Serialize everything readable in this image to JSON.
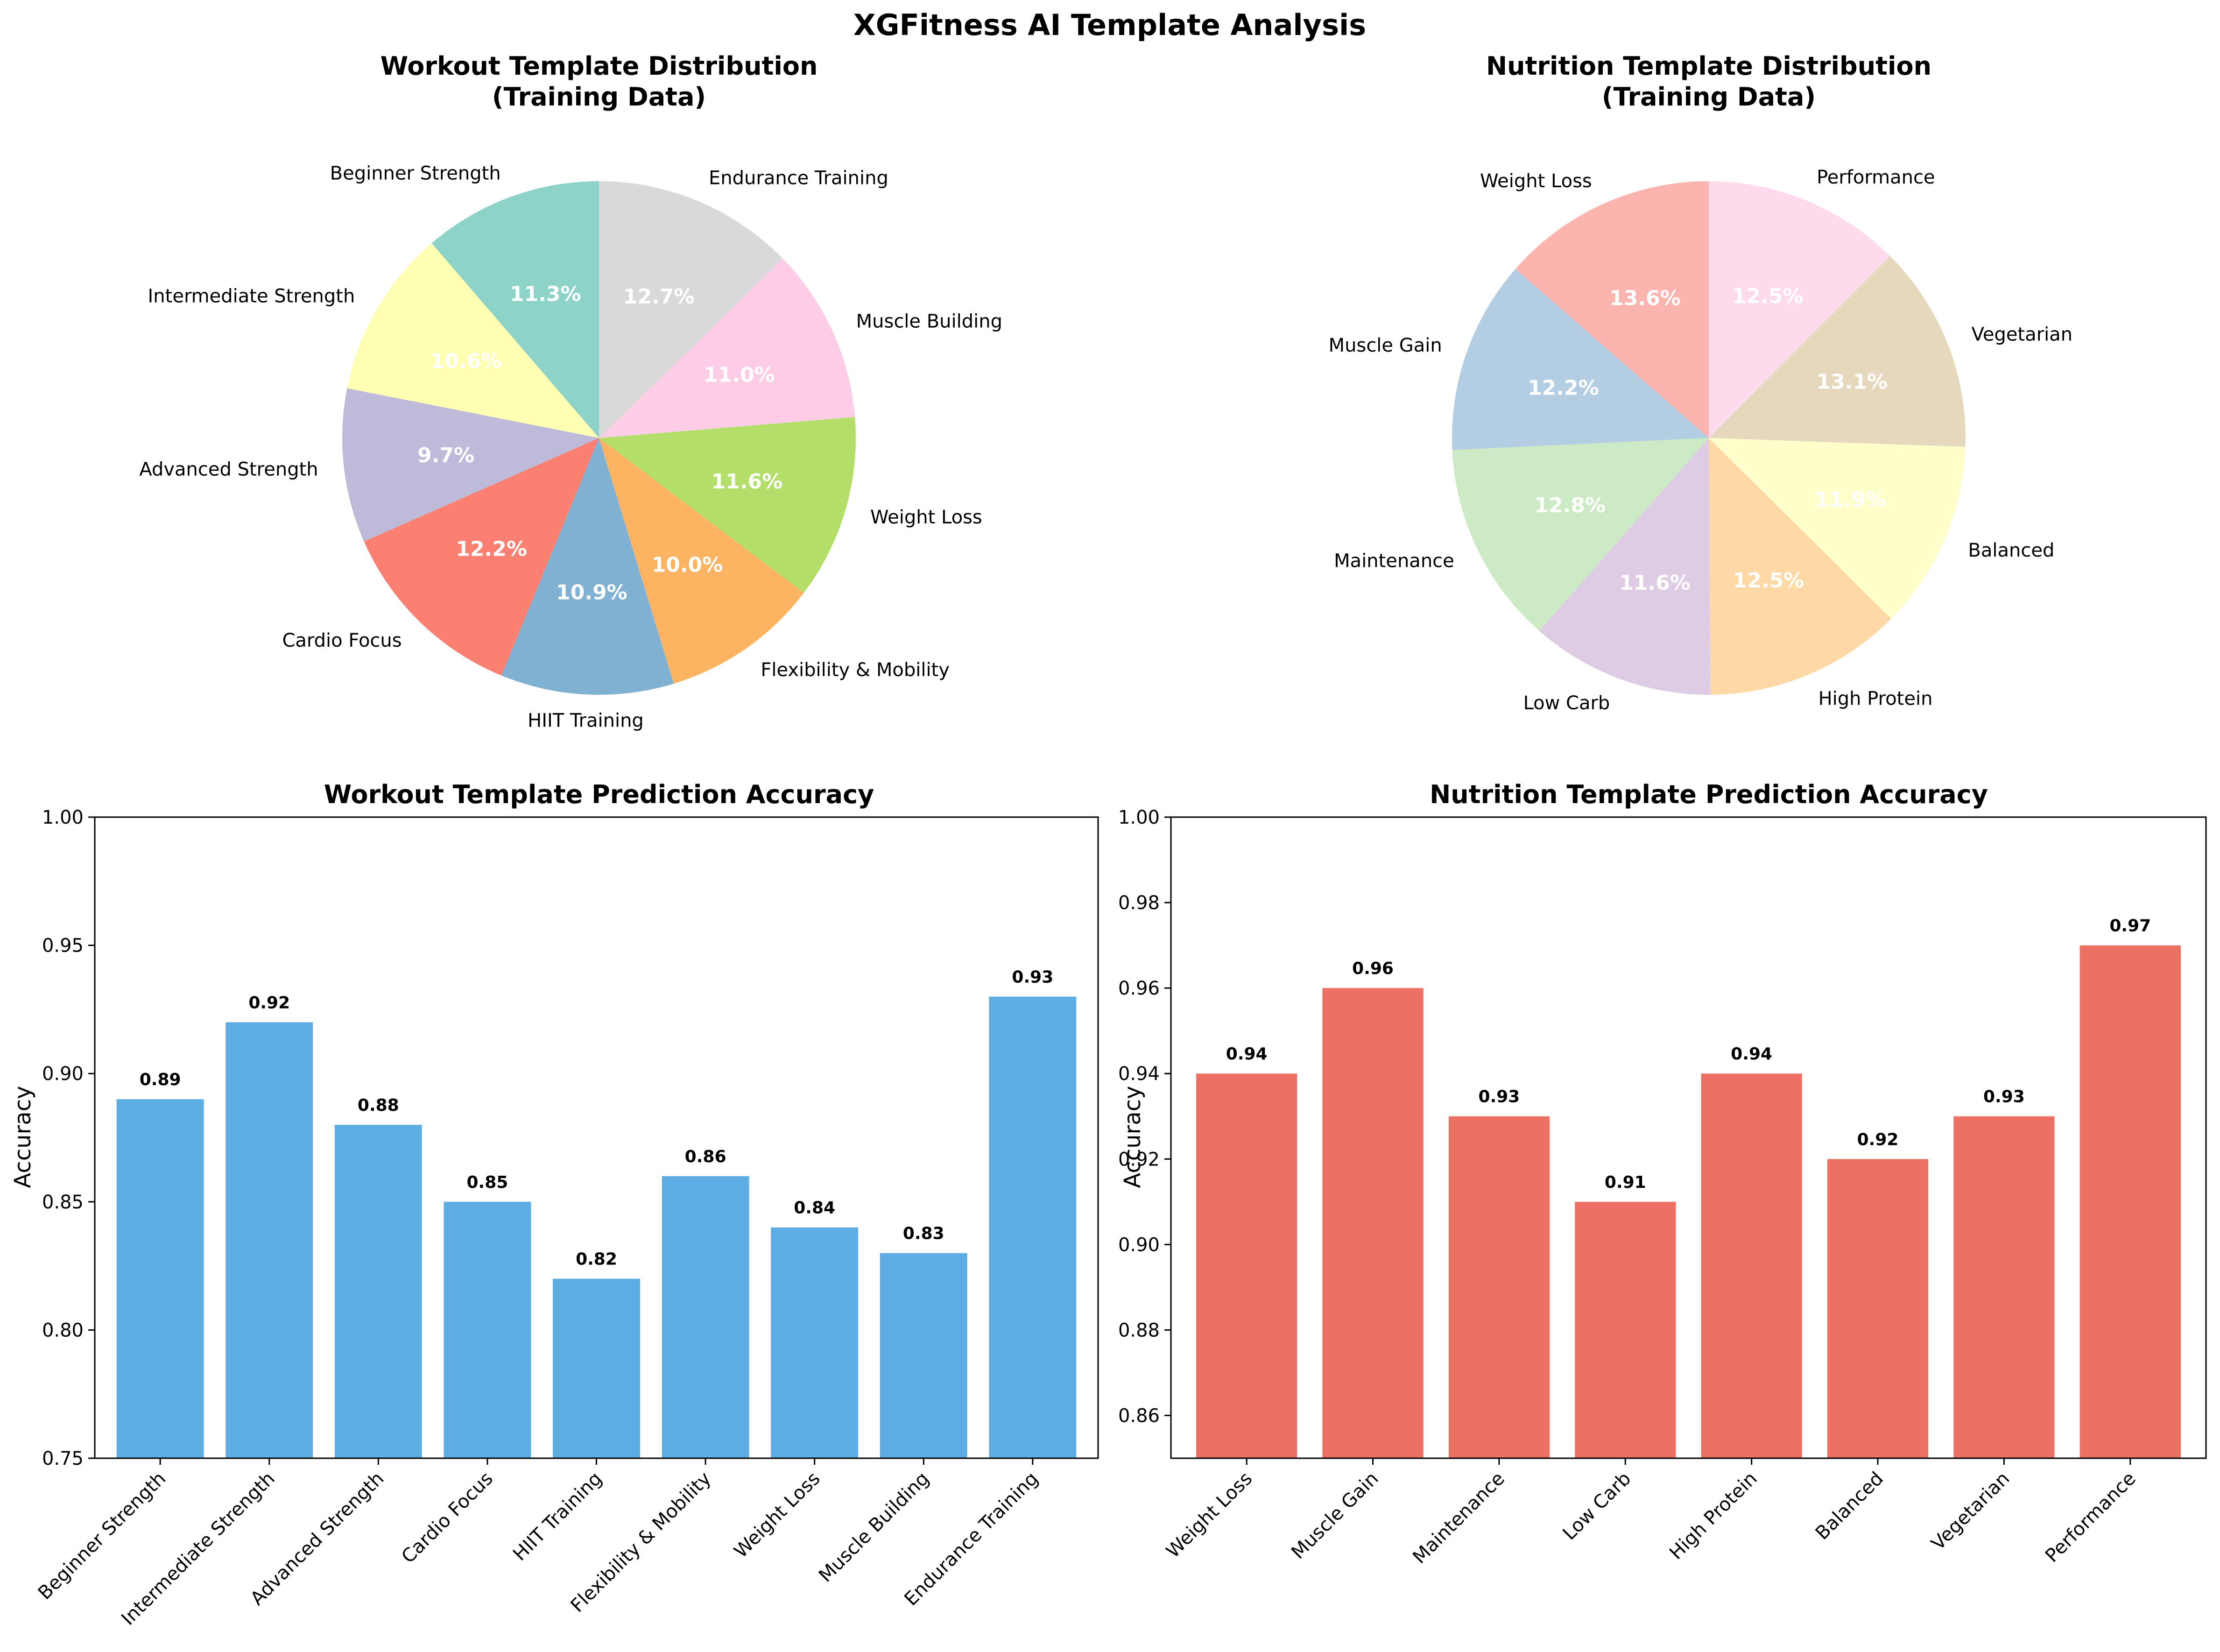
{
  "suptitle": "XGFitness AI Template Analysis",
  "colors": {
    "workout_pie": [
      "#8dd3c7",
      "#ffffb3",
      "#bebada",
      "#fb8072",
      "#80b1d3",
      "#fdb462",
      "#b3de69",
      "#fccde5",
      "#d9d9d9"
    ],
    "nutrition_pie": [
      "#fbb4ae",
      "#b3cde3",
      "#ccebc5",
      "#decbe4",
      "#fed9a6",
      "#ffffcc",
      "#e5d8bd",
      "#fddaec"
    ],
    "workout_bar": "#5dade2",
    "nutrition_bar": "#ec7063"
  },
  "chart_data": [
    {
      "type": "pie",
      "title": [
        "Workout Template Distribution",
        "(Training Data)"
      ],
      "categories": [
        "Beginner Strength",
        "Intermediate Strength",
        "Advanced Strength",
        "Cardio Focus",
        "HIIT Training",
        "Flexibility & Mobility",
        "Weight Loss",
        "Muscle Building",
        "Endurance Training"
      ],
      "values": [
        11.3,
        10.6,
        9.7,
        12.2,
        10.9,
        10.0,
        11.6,
        11.0,
        12.7
      ],
      "value_labels": [
        "11.3%",
        "10.6%",
        "9.7%",
        "12.2%",
        "10.9%",
        "10.0%",
        "11.6%",
        "11.0%",
        "12.7%"
      ],
      "start_angle_deg": 90,
      "direction": "counterclockwise"
    },
    {
      "type": "pie",
      "title": [
        "Nutrition Template Distribution",
        "(Training Data)"
      ],
      "categories": [
        "Weight Loss",
        "Muscle Gain",
        "Maintenance",
        "Low Carb",
        "High Protein",
        "Balanced",
        "Vegetarian",
        "Performance"
      ],
      "values": [
        13.6,
        12.2,
        12.8,
        11.6,
        12.5,
        11.9,
        13.1,
        12.5
      ],
      "value_labels": [
        "13.6%",
        "12.2%",
        "12.8%",
        "11.6%",
        "12.5%",
        "11.9%",
        "13.1%",
        "12.5%"
      ],
      "start_angle_deg": 90,
      "direction": "counterclockwise"
    },
    {
      "type": "bar",
      "title": "Workout Template Prediction Accuracy",
      "ylabel": "Accuracy",
      "categories": [
        "Beginner Strength",
        "Intermediate Strength",
        "Advanced Strength",
        "Cardio Focus",
        "HIIT Training",
        "Flexibility & Mobility",
        "Weight Loss",
        "Muscle Building",
        "Endurance Training"
      ],
      "values": [
        0.89,
        0.92,
        0.88,
        0.85,
        0.82,
        0.86,
        0.84,
        0.83,
        0.93
      ],
      "value_labels": [
        "0.89",
        "0.92",
        "0.88",
        "0.85",
        "0.82",
        "0.86",
        "0.84",
        "0.83",
        "0.93"
      ],
      "ylim": [
        0.75,
        1.0
      ],
      "yticks": [
        0.75,
        0.8,
        0.85,
        0.9,
        0.95,
        1.0
      ],
      "ytick_labels": [
        "0.75",
        "0.80",
        "0.85",
        "0.90",
        "0.95",
        "1.00"
      ],
      "grid": false
    },
    {
      "type": "bar",
      "title": "Nutrition Template Prediction Accuracy",
      "ylabel": "Accuracy",
      "categories": [
        "Weight Loss",
        "Muscle Gain",
        "Maintenance",
        "Low Carb",
        "High Protein",
        "Balanced",
        "Vegetarian",
        "Performance"
      ],
      "values": [
        0.94,
        0.96,
        0.93,
        0.91,
        0.94,
        0.92,
        0.93,
        0.97
      ],
      "value_labels": [
        "0.94",
        "0.96",
        "0.93",
        "0.91",
        "0.94",
        "0.92",
        "0.93",
        "0.97"
      ],
      "ylim": [
        0.85,
        1.0
      ],
      "yticks": [
        0.86,
        0.88,
        0.9,
        0.92,
        0.94,
        0.96,
        0.98,
        1.0
      ],
      "ytick_labels": [
        "0.86",
        "0.88",
        "0.90",
        "0.92",
        "0.94",
        "0.96",
        "0.98",
        "1.00"
      ],
      "grid": false
    }
  ]
}
